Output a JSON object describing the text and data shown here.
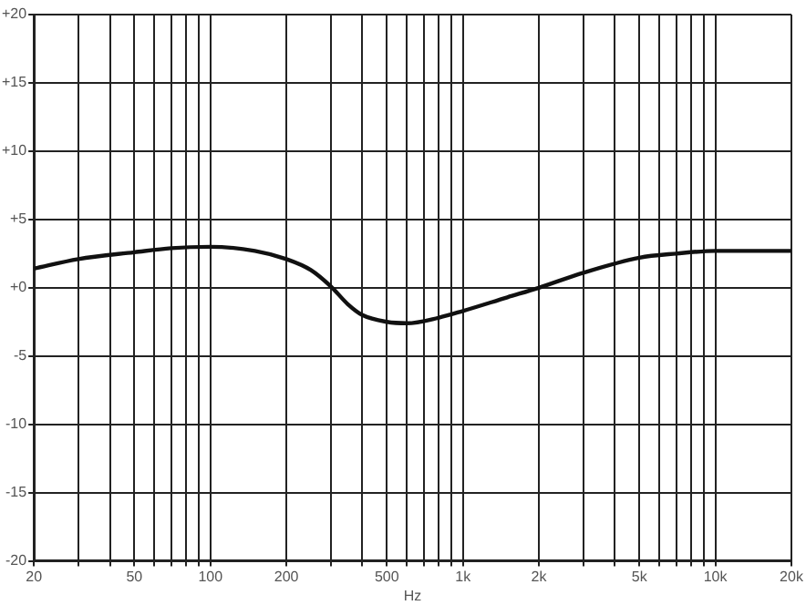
{
  "chart_data": {
    "type": "line",
    "xlabel": "Hz",
    "log": "x",
    "grid": true,
    "legend": false,
    "marker": "none",
    "line_style": "solid",
    "xlim": [
      20,
      20000
    ],
    "ylim": [
      -20,
      20
    ],
    "xticks": [
      20,
      {
        "value": 30,
        "label": null
      },
      {
        "value": 40,
        "label": null
      },
      50,
      {
        "value": 60,
        "label": null
      },
      {
        "value": 70,
        "label": null
      },
      {
        "value": 80,
        "label": null
      },
      {
        "value": 90,
        "label": null
      },
      100,
      200,
      {
        "value": 300,
        "label": null
      },
      {
        "value": 400,
        "label": null
      },
      500,
      {
        "value": 600,
        "label": null
      },
      {
        "value": 700,
        "label": null
      },
      {
        "value": 800,
        "label": null
      },
      {
        "value": 900,
        "label": null
      },
      {
        "value": 1000,
        "label": "1k"
      },
      {
        "value": 2000,
        "label": "2k"
      },
      {
        "value": 3000,
        "label": null
      },
      {
        "value": 4000,
        "label": null
      },
      {
        "value": 5000,
        "label": "5k"
      },
      {
        "value": 6000,
        "label": null
      },
      {
        "value": 7000,
        "label": null
      },
      {
        "value": 8000,
        "label": null
      },
      {
        "value": 9000,
        "label": null
      },
      {
        "value": 10000,
        "label": "10k"
      },
      {
        "value": 20000,
        "label": "20k"
      }
    ],
    "yticks": [
      {
        "value": -20,
        "label": "-20"
      },
      {
        "value": -15,
        "label": "-15"
      },
      {
        "value": -10,
        "label": "-10"
      },
      {
        "value": -5,
        "label": "-5"
      },
      {
        "value": 0,
        "label": "+0"
      },
      {
        "value": 5,
        "label": "+5"
      },
      {
        "value": 10,
        "label": "+10"
      },
      {
        "value": 15,
        "label": "+15"
      },
      {
        "value": 20,
        "label": "+20"
      }
    ],
    "series": [
      {
        "color": "#111111",
        "x": [
          20,
          30,
          50,
          70,
          100,
          150,
          200,
          250,
          300,
          350,
          400,
          500,
          600,
          800,
          1000,
          1500,
          2000,
          3000,
          5000,
          7000,
          10000,
          15000,
          20000
        ],
        "values": [
          1.4,
          2.1,
          2.6,
          2.9,
          3.0,
          2.7,
          2.1,
          1.3,
          0.1,
          -1.2,
          -2.0,
          -2.5,
          -2.6,
          -2.2,
          -1.7,
          -0.7,
          0.0,
          1.1,
          2.2,
          2.5,
          2.7,
          2.7,
          2.7
        ]
      }
    ]
  }
}
